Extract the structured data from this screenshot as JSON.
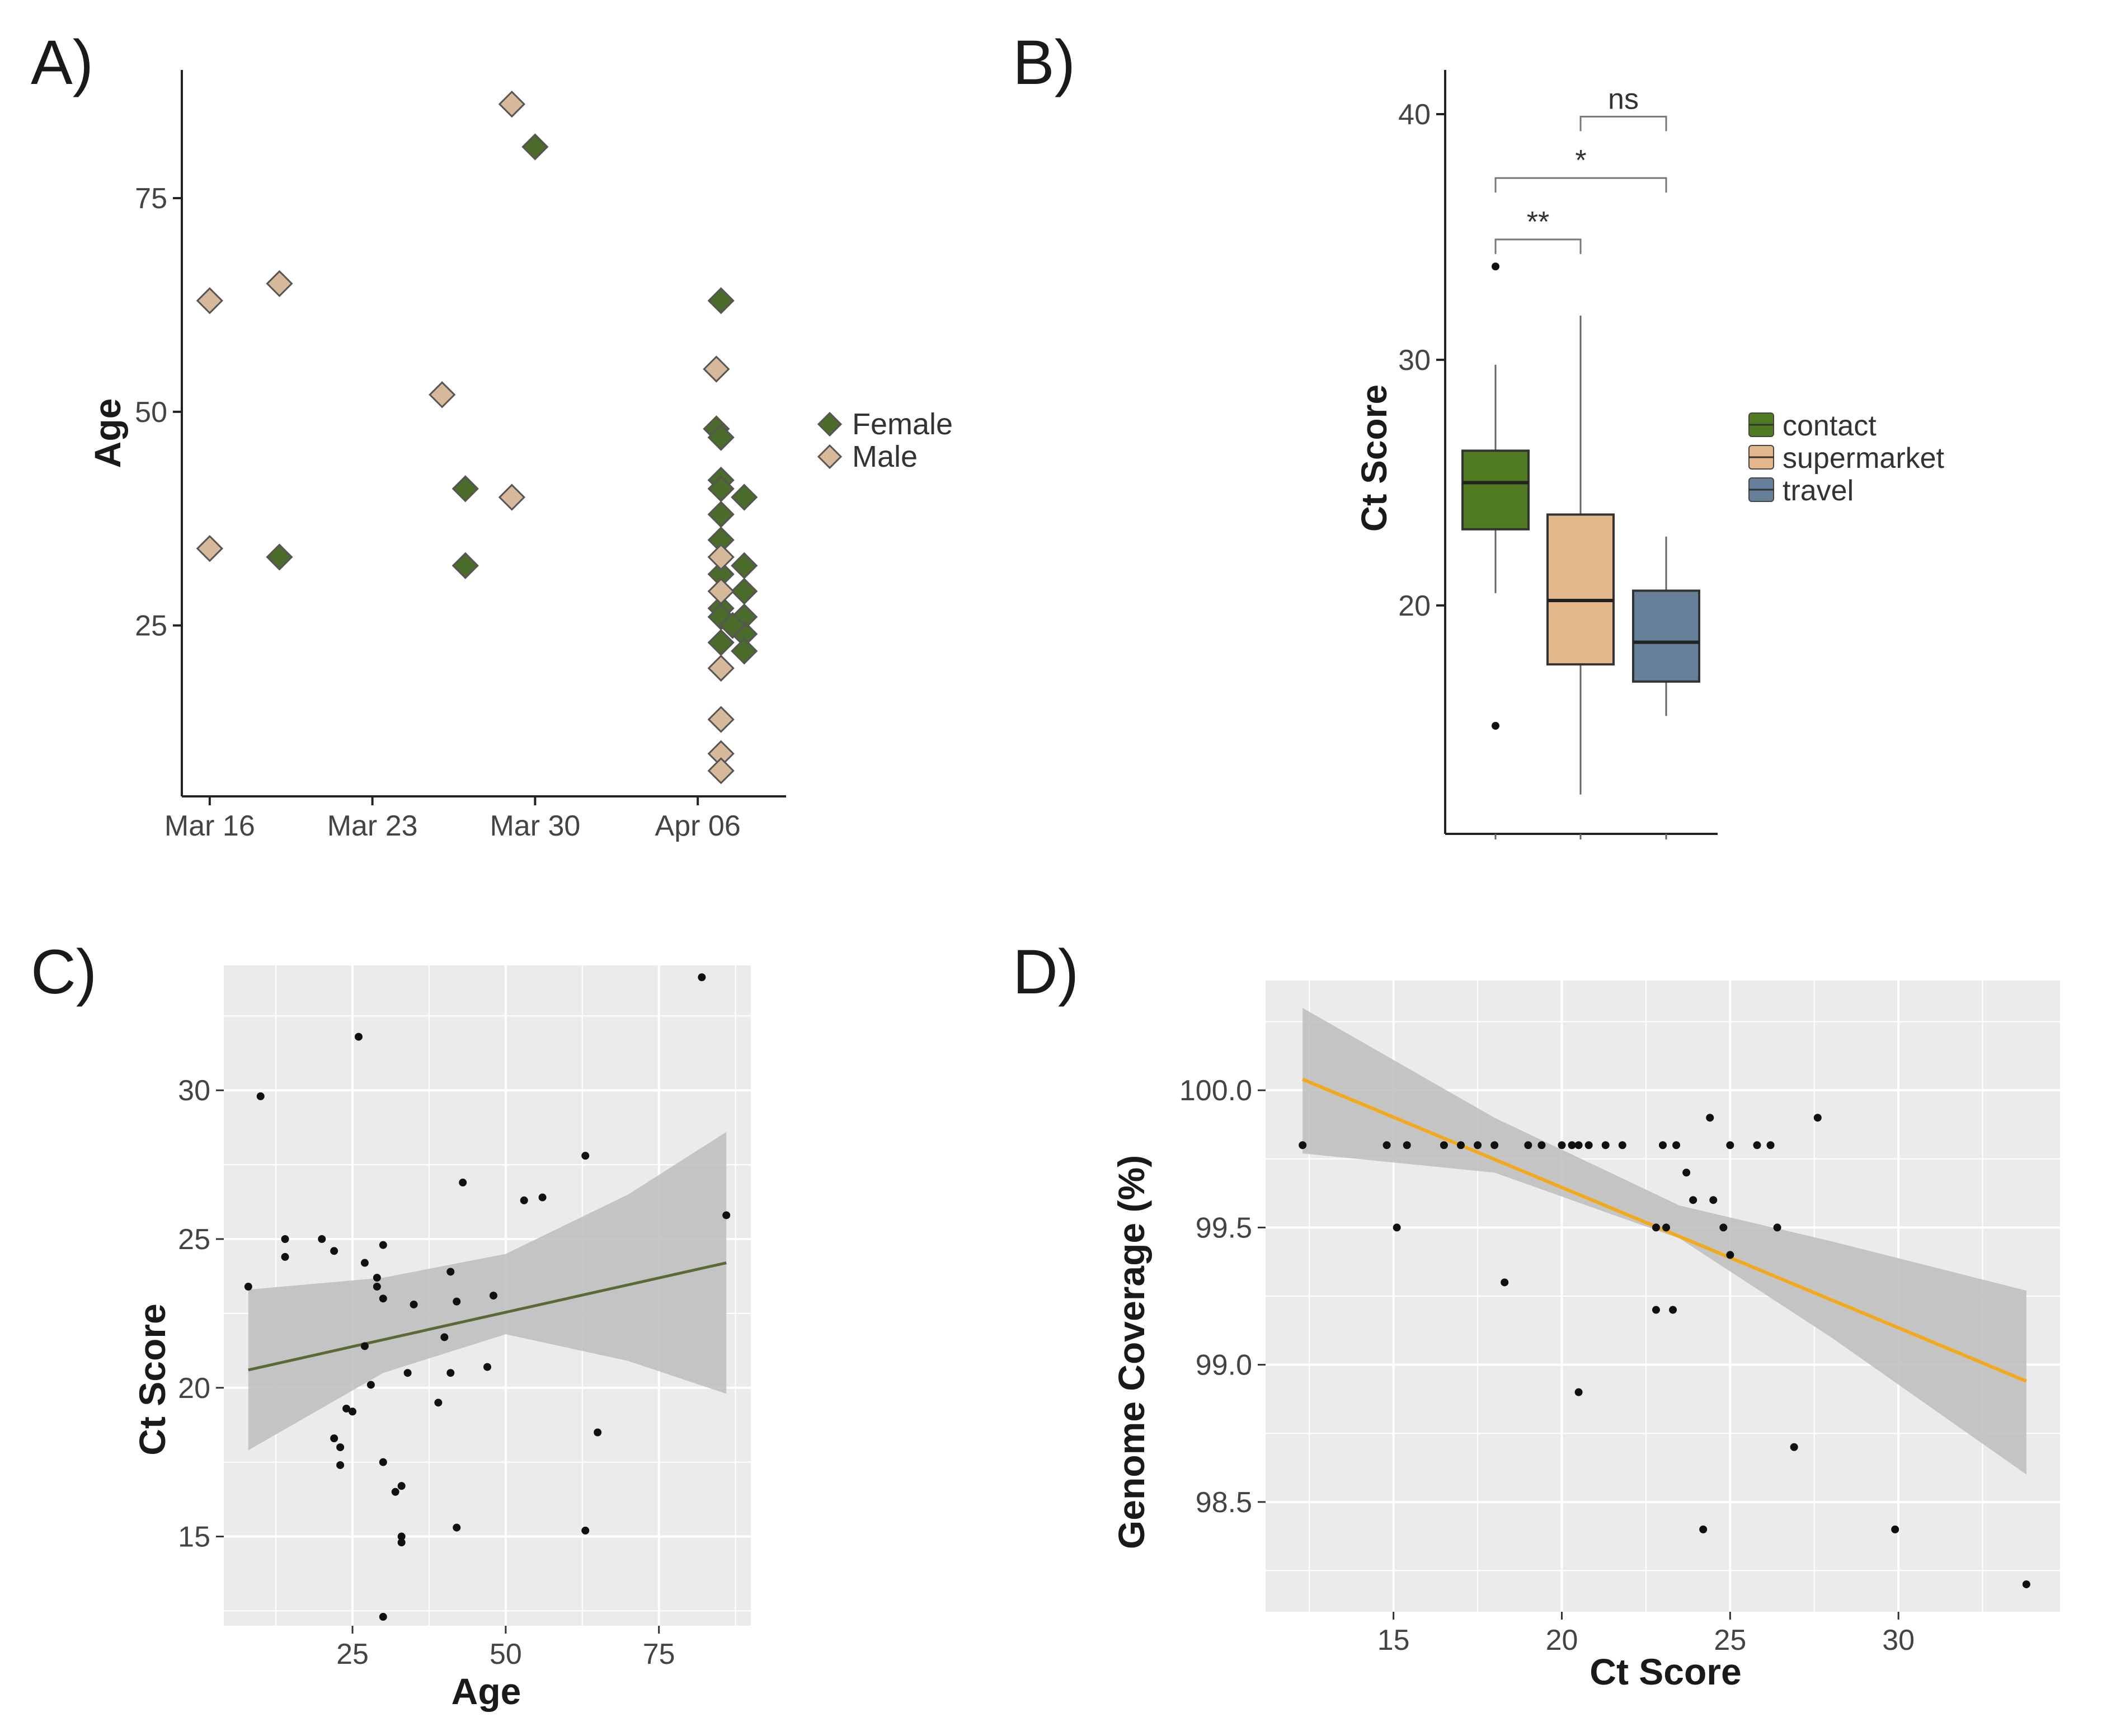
{
  "colors": {
    "female": "#4a6b2a",
    "male": "#d6b89a",
    "contact": "#4f7a22",
    "supermarket": "#e3b68c",
    "travel": "#66809a",
    "panel_bg": "#ebebeb",
    "grid": "#ffffff",
    "band": "#bdbdbd",
    "line_c": "#5a6a36",
    "line_d": "#f2a91c",
    "point": "#111111"
  },
  "chart_data": [
    {
      "id": "A",
      "panel_label": "A)",
      "type": "scatter",
      "title": "",
      "xlabel": "",
      "ylabel": "Age",
      "x_ticks": [
        {
          "day": 0,
          "label": "Mar 16"
        },
        {
          "day": 7,
          "label": "Mar 23"
        },
        {
          "day": 14,
          "label": "Mar 30"
        },
        {
          "day": 21,
          "label": "Apr 06"
        }
      ],
      "xlim": [
        -1.2,
        24.8
      ],
      "y_ticks": [
        25,
        50,
        75
      ],
      "ylim": [
        5,
        90
      ],
      "grid": false,
      "legend": {
        "placement": "right",
        "entries": [
          "Female",
          "Male"
        ]
      },
      "series": [
        {
          "name": "Female",
          "points": [
            [
              3,
              33
            ],
            [
              11,
              41
            ],
            [
              11,
              32
            ],
            [
              14,
              81
            ],
            [
              22,
              63
            ],
            [
              21.8,
              48
            ],
            [
              22,
              47
            ],
            [
              22,
              42
            ],
            [
              22,
              41
            ],
            [
              22,
              38
            ],
            [
              23,
              40
            ],
            [
              22,
              35
            ],
            [
              23,
              32
            ],
            [
              22,
              31
            ],
            [
              22,
              27
            ],
            [
              23,
              29
            ],
            [
              22,
              26
            ],
            [
              23,
              26
            ],
            [
              22,
              23
            ],
            [
              23,
              24
            ],
            [
              23,
              22
            ],
            [
              22.5,
              25
            ]
          ]
        },
        {
          "name": "Male",
          "points": [
            [
              0,
              63
            ],
            [
              0,
              34
            ],
            [
              3,
              65
            ],
            [
              10,
              52
            ],
            [
              13,
              86
            ],
            [
              13,
              40
            ],
            [
              21.8,
              55
            ],
            [
              22,
              33
            ],
            [
              22,
              29
            ],
            [
              22,
              20
            ],
            [
              22,
              14
            ],
            [
              22,
              10
            ],
            [
              22,
              8
            ]
          ]
        }
      ]
    },
    {
      "id": "B",
      "panel_label": "B)",
      "type": "box",
      "title": "",
      "xlabel": "",
      "ylabel": "Ct Score",
      "y_ticks": [
        20,
        30,
        40
      ],
      "ylim": [
        10.7,
        41.8
      ],
      "grid": false,
      "legend": {
        "placement": "right",
        "entries": [
          "contact",
          "supermarket",
          "travel"
        ]
      },
      "groups": [
        {
          "name": "contact",
          "q1": 23.1,
          "median": 25.0,
          "q3": 26.3,
          "whisker_low": 20.5,
          "whisker_high": 29.8,
          "outliers": [
            33.8,
            15.1
          ]
        },
        {
          "name": "supermarket",
          "q1": 17.6,
          "median": 20.2,
          "q3": 23.7,
          "whisker_low": 12.3,
          "whisker_high": 31.8,
          "outliers": []
        },
        {
          "name": "travel",
          "q1": 16.9,
          "median": 18.5,
          "q3": 20.6,
          "whisker_low": 15.5,
          "whisker_high": 22.8,
          "outliers": []
        }
      ],
      "significance": [
        {
          "from": "contact",
          "to": "supermarket",
          "label": "**",
          "level": 34.9
        },
        {
          "from": "contact",
          "to": "travel",
          "label": "*",
          "level": 37.4
        },
        {
          "from": "supermarket",
          "to": "travel",
          "label": "ns",
          "level": 39.9
        }
      ]
    },
    {
      "id": "C",
      "panel_label": "C)",
      "type": "scatter",
      "title": "",
      "xlabel": "Age",
      "ylabel": "Ct Score",
      "x_ticks": [
        25,
        50,
        75
      ],
      "xlim": [
        4,
        90
      ],
      "y_ticks": [
        15,
        20,
        25,
        30
      ],
      "ylim": [
        12,
        34.2
      ],
      "grid": true,
      "points": [
        [
          8,
          23.4
        ],
        [
          10,
          29.8
        ],
        [
          14,
          25.0
        ],
        [
          14,
          24.4
        ],
        [
          20,
          25.0
        ],
        [
          22,
          24.6
        ],
        [
          22,
          18.3
        ],
        [
          23,
          18.0
        ],
        [
          23,
          17.4
        ],
        [
          24,
          19.3
        ],
        [
          25,
          19.2
        ],
        [
          26,
          31.8
        ],
        [
          27,
          24.2
        ],
        [
          27,
          21.4
        ],
        [
          28,
          20.1
        ],
        [
          29,
          23.7
        ],
        [
          29,
          23.4
        ],
        [
          30,
          24.8
        ],
        [
          30,
          23.0
        ],
        [
          30,
          17.5
        ],
        [
          30,
          12.3
        ],
        [
          32,
          16.5
        ],
        [
          33,
          16.7
        ],
        [
          33,
          15.0
        ],
        [
          33,
          14.8
        ],
        [
          34,
          20.5
        ],
        [
          35,
          22.8
        ],
        [
          39,
          19.5
        ],
        [
          40,
          21.7
        ],
        [
          41,
          23.9
        ],
        [
          41,
          20.5
        ],
        [
          42,
          22.9
        ],
        [
          42,
          15.3
        ],
        [
          43,
          26.9
        ],
        [
          47,
          20.7
        ],
        [
          48,
          23.1
        ],
        [
          53,
          26.3
        ],
        [
          56,
          26.4
        ],
        [
          63,
          27.8
        ],
        [
          63,
          15.2
        ],
        [
          65,
          18.5
        ],
        [
          82,
          33.8
        ],
        [
          86,
          25.8
        ]
      ],
      "fit": {
        "x": [
          8,
          86
        ],
        "y": [
          20.6,
          24.2
        ]
      },
      "ci": {
        "x": [
          8,
          30,
          50,
          70,
          86
        ],
        "upper": [
          23.3,
          23.7,
          24.5,
          26.5,
          28.6
        ],
        "lower": [
          17.9,
          20.5,
          21.8,
          20.9,
          19.8
        ]
      }
    },
    {
      "id": "D",
      "panel_label": "D)",
      "type": "scatter",
      "title": "",
      "xlabel": "Ct Score",
      "ylabel": "Genome Coverage (%)",
      "x_ticks": [
        15,
        20,
        25,
        30
      ],
      "xlim": [
        11.2,
        34.8
      ],
      "y_ticks": [
        "98.5",
        "99.0",
        "99.5",
        "100.0"
      ],
      "y_tick_values": [
        98.5,
        99.0,
        99.5,
        100.0
      ],
      "ylim": [
        98.1,
        100.4
      ],
      "grid": true,
      "points": [
        [
          12.3,
          99.8
        ],
        [
          14.8,
          99.8
        ],
        [
          15.1,
          99.5
        ],
        [
          15.4,
          99.8
        ],
        [
          16.5,
          99.8
        ],
        [
          17.0,
          99.8
        ],
        [
          17.5,
          99.8
        ],
        [
          18.0,
          99.8
        ],
        [
          18.3,
          99.3
        ],
        [
          19.0,
          99.8
        ],
        [
          19.4,
          99.8
        ],
        [
          20.0,
          99.8
        ],
        [
          20.3,
          99.8
        ],
        [
          20.5,
          99.8
        ],
        [
          20.5,
          98.9
        ],
        [
          20.8,
          99.8
        ],
        [
          21.3,
          99.8
        ],
        [
          21.8,
          99.8
        ],
        [
          22.8,
          99.5
        ],
        [
          22.8,
          99.2
        ],
        [
          23.0,
          99.8
        ],
        [
          23.1,
          99.5
        ],
        [
          23.3,
          99.2
        ],
        [
          23.4,
          99.8
        ],
        [
          23.7,
          99.7
        ],
        [
          23.9,
          99.6
        ],
        [
          24.2,
          98.4
        ],
        [
          24.4,
          99.9
        ],
        [
          24.5,
          99.6
        ],
        [
          24.8,
          99.5
        ],
        [
          25.0,
          99.8
        ],
        [
          25.0,
          99.4
        ],
        [
          25.8,
          99.8
        ],
        [
          26.2,
          99.8
        ],
        [
          26.4,
          99.5
        ],
        [
          26.9,
          98.7
        ],
        [
          27.6,
          99.9
        ],
        [
          29.9,
          98.4
        ],
        [
          33.8,
          98.2
        ]
      ],
      "fit": {
        "x": [
          12.3,
          33.8
        ],
        "y": [
          100.04,
          98.94
        ]
      },
      "ci": {
        "x": [
          12.3,
          18,
          23.5,
          28,
          33.8
        ],
        "upper": [
          100.3,
          99.9,
          99.58,
          99.45,
          99.27
        ],
        "lower": [
          99.77,
          99.7,
          99.46,
          99.1,
          98.6
        ]
      }
    }
  ]
}
